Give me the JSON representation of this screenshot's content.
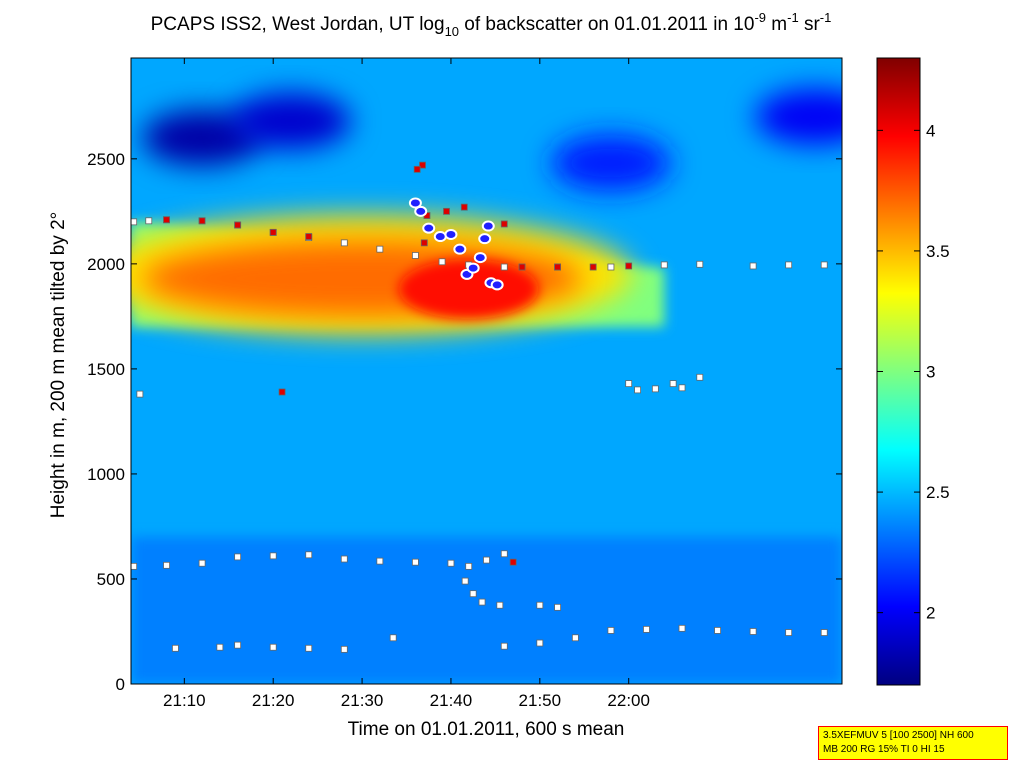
{
  "chart_data": {
    "type": "heatmap",
    "title": {
      "p1": "PCAPS ISS2, West Jordan, UT log",
      "p1_sub": "10",
      "p2": " of backscatter on 01.01.2011 in 10",
      "p2_sup": "-9",
      "p3": " m",
      "p3_sup": "-1",
      "p4": " sr",
      "p4_sup": "-1"
    },
    "xlabel": "Time on 01.01.2011, 600 s mean",
    "ylabel": "Height in m, 200 m mean tilted by 2°",
    "xlim_min": [
      1264,
      1344
    ],
    "ylim": [
      0,
      2980
    ],
    "xticks": [
      {
        "min": 1270,
        "label": "21:10"
      },
      {
        "min": 1280,
        "label": "21:20"
      },
      {
        "min": 1290,
        "label": "21:30"
      },
      {
        "min": 1300,
        "label": "21:40"
      },
      {
        "min": 1310,
        "label": "21:50"
      },
      {
        "min": 1320,
        "label": "22:00"
      }
    ],
    "yticks": [
      0,
      500,
      1000,
      1500,
      2000,
      2500
    ],
    "colorbar": {
      "range": [
        1.7,
        4.3
      ],
      "ticks": [
        {
          "value": 2,
          "label": "2"
        },
        {
          "value": 2.5,
          "label": "2.5"
        },
        {
          "value": 3,
          "label": "3"
        },
        {
          "value": 3.5,
          "label": "3.5"
        },
        {
          "value": 4,
          "label": "4"
        }
      ],
      "colormap": "jet"
    },
    "field": {
      "background_value": 2.45,
      "aerosol_layer": {
        "top_m": [
          2200,
          1980
        ],
        "bottom_m": 1700,
        "peak_value": 3.95
      },
      "upper_clear_patches": [
        {
          "t": 1272,
          "z": 2600,
          "value": 1.8
        },
        {
          "t": 1282,
          "z": 2680,
          "value": 1.9
        },
        {
          "t": 1318,
          "z": 2480,
          "value": 2.1
        },
        {
          "t": 1341,
          "z": 2700,
          "value": 2.0
        }
      ]
    },
    "series": [
      {
        "marker": "white-square",
        "points": [
          [
            1264.3,
            2200
          ],
          [
            1266,
            2205
          ],
          [
            1268,
            2210
          ],
          [
            1272,
            2205
          ],
          [
            1276,
            2185
          ],
          [
            1280,
            2150
          ],
          [
            1284,
            2125
          ],
          [
            1288,
            2100
          ],
          [
            1292,
            2070
          ],
          [
            1296,
            2040
          ],
          [
            1299,
            2010
          ],
          [
            1302,
            1995
          ],
          [
            1306,
            1985
          ],
          [
            1312,
            1985
          ],
          [
            1318,
            1985
          ],
          [
            1324,
            1995
          ],
          [
            1328,
            1998
          ],
          [
            1334,
            1990
          ],
          [
            1338,
            1995
          ],
          [
            1342,
            1995
          ],
          [
            1264.3,
            560
          ],
          [
            1268,
            565
          ],
          [
            1272,
            575
          ],
          [
            1276,
            605
          ],
          [
            1280,
            610
          ],
          [
            1284,
            615
          ],
          [
            1288,
            595
          ],
          [
            1292,
            585
          ],
          [
            1296,
            580
          ],
          [
            1300,
            575
          ],
          [
            1302,
            560
          ],
          [
            1304,
            590
          ],
          [
            1306,
            620
          ],
          [
            1301.6,
            490
          ],
          [
            1302.5,
            430
          ],
          [
            1303.5,
            390
          ],
          [
            1305.5,
            375
          ],
          [
            1310,
            375
          ],
          [
            1312,
            365
          ],
          [
            1269,
            170
          ],
          [
            1274,
            175
          ],
          [
            1276,
            185
          ],
          [
            1280,
            175
          ],
          [
            1284,
            170
          ],
          [
            1288,
            165
          ],
          [
            1293.5,
            220
          ],
          [
            1306,
            180
          ],
          [
            1310,
            195
          ],
          [
            1314,
            220
          ],
          [
            1318,
            255
          ],
          [
            1322,
            260
          ],
          [
            1326,
            265
          ],
          [
            1330,
            255
          ],
          [
            1334,
            250
          ],
          [
            1338,
            245
          ],
          [
            1342,
            245
          ],
          [
            1265,
            1380
          ],
          [
            1320,
            1430
          ],
          [
            1321,
            1400
          ],
          [
            1323,
            1405
          ],
          [
            1325,
            1430
          ],
          [
            1326,
            1410
          ],
          [
            1328,
            1460
          ]
        ]
      },
      {
        "marker": "red-square",
        "points": [
          [
            1268,
            2210
          ],
          [
            1272,
            2205
          ],
          [
            1276,
            2185
          ],
          [
            1280,
            2150
          ],
          [
            1284,
            2130
          ],
          [
            1296.8,
            2470
          ],
          [
            1296.2,
            2450
          ],
          [
            1297.3,
            2230
          ],
          [
            1299.5,
            2250
          ],
          [
            1301.5,
            2270
          ],
          [
            1297,
            2100
          ],
          [
            1306,
            2190
          ],
          [
            1308,
            1985
          ],
          [
            1312,
            1985
          ],
          [
            1316,
            1985
          ],
          [
            1320,
            1990
          ],
          [
            1281,
            1390
          ],
          [
            1307,
            580
          ]
        ]
      },
      {
        "marker": "blue-circle",
        "points": [
          [
            1296,
            2290
          ],
          [
            1296.6,
            2250
          ],
          [
            1297.5,
            2170
          ],
          [
            1298.8,
            2130
          ],
          [
            1300,
            2140
          ],
          [
            1301,
            2070
          ],
          [
            1301.8,
            1950
          ],
          [
            1302.5,
            1980
          ],
          [
            1303.3,
            2030
          ],
          [
            1303.8,
            2120
          ],
          [
            1304.2,
            2180
          ],
          [
            1304.5,
            1910
          ],
          [
            1305.2,
            1900
          ]
        ]
      }
    ]
  },
  "info_box": {
    "line1": "3.5XEFMUV 5 [100 2500] NH 600",
    "line2": "MB 200 RG 15% TI 0 HI 15"
  }
}
